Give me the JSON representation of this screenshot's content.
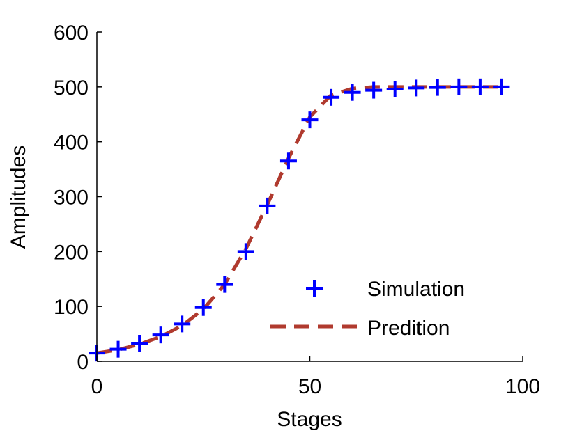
{
  "chart_data": {
    "type": "line",
    "title": "",
    "xlabel": "Stages",
    "ylabel": "Amplitudes",
    "xlim": [
      0,
      100
    ],
    "ylim": [
      0,
      600
    ],
    "x_ticks": [
      "0",
      "50",
      "100"
    ],
    "y_ticks": [
      "0",
      "100",
      "200",
      "300",
      "400",
      "500",
      "600"
    ],
    "x_tick_values": [
      0,
      50,
      100
    ],
    "y_tick_values": [
      0,
      100,
      200,
      300,
      400,
      500,
      600
    ],
    "grid": false,
    "legend_position": "lower-right",
    "series": [
      {
        "name": "Simulation",
        "style": "markers",
        "marker": "plus",
        "color": "#0000ff",
        "x": [
          0,
          5,
          10,
          15,
          20,
          25,
          30,
          35,
          40,
          45,
          50,
          55,
          60,
          65,
          70,
          75,
          80,
          85,
          90,
          95
        ],
        "y": [
          15,
          22,
          33,
          48,
          68,
          98,
          140,
          200,
          283,
          365,
          440,
          481,
          490,
          494,
          496,
          498,
          499,
          500,
          500,
          500
        ]
      },
      {
        "name": "Predition",
        "style": "dashed-line",
        "color": "#b03a2e",
        "x": [
          0,
          5,
          10,
          15,
          20,
          25,
          30,
          35,
          40,
          45,
          50,
          55,
          60,
          65,
          70,
          75,
          80,
          85,
          90,
          95
        ],
        "y": [
          15,
          21,
          31,
          45,
          65,
          95,
          140,
          205,
          285,
          370,
          445,
          485,
          497,
          500,
          500,
          500,
          500,
          500,
          500,
          500
        ]
      }
    ]
  }
}
